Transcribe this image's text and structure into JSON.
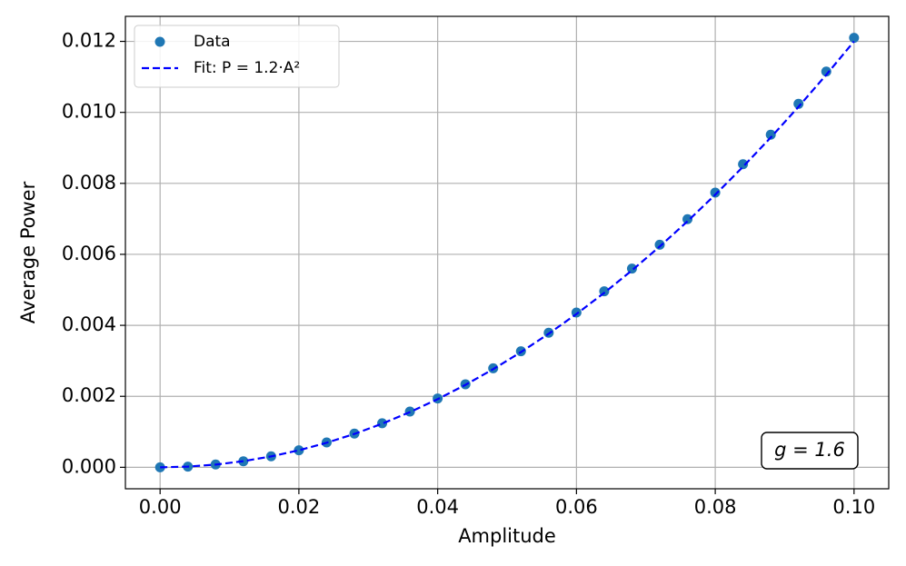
{
  "chart_data": {
    "type": "scatter",
    "x_label": "Amplitude",
    "y_label": "Average Power",
    "annotation": "g = 1.6",
    "x": [
      0,
      0.004,
      0.008,
      0.012,
      0.016,
      0.02,
      0.024,
      0.028,
      0.032,
      0.036,
      0.04,
      0.044,
      0.048,
      0.052,
      0.056,
      0.06,
      0.064,
      0.068,
      0.072,
      0.076,
      0.08,
      0.084,
      0.088,
      0.092,
      0.096,
      0.1
    ],
    "series": [
      {
        "name": "Data",
        "color": "#1f77b4",
        "style": "marker",
        "values": [
          0,
          2e-05,
          8e-05,
          0.00017,
          0.00031,
          0.00048,
          0.0007,
          0.00095,
          0.00124,
          0.00157,
          0.00194,
          0.00234,
          0.00279,
          0.00327,
          0.00379,
          0.00436,
          0.00496,
          0.0056,
          0.00627,
          0.00699,
          0.00774,
          0.00854,
          0.00937,
          0.01024,
          0.01115,
          0.0121
        ]
      },
      {
        "name": "Fit: P = 1.2·A²",
        "color": "#0000ff",
        "style": "dashed",
        "values": [
          0,
          1.92e-05,
          7.68e-05,
          0.0001728,
          0.0003072,
          0.00048,
          0.0006912,
          0.0009408,
          0.0012288,
          0.0015552,
          0.00192,
          0.0023232,
          0.0027648,
          0.0032448,
          0.0037632,
          0.00432,
          0.0049152,
          0.0055488,
          0.0062208,
          0.0069312,
          0.00768,
          0.0084672,
          0.0092928,
          0.0101568,
          0.0110592,
          0.012
        ]
      }
    ],
    "xlim": [
      -0.005,
      0.105
    ],
    "ylim": [
      -0.000605,
      0.012705
    ],
    "xticks": [
      {
        "value": 0,
        "label": "0.00"
      },
      {
        "value": 0.02,
        "label": "0.02"
      },
      {
        "value": 0.04,
        "label": "0.04"
      },
      {
        "value": 0.06,
        "label": "0.06"
      },
      {
        "value": 0.08,
        "label": "0.08"
      },
      {
        "value": 0.1,
        "label": "0.10"
      }
    ],
    "yticks": [
      {
        "value": 0,
        "label": "0.000"
      },
      {
        "value": 0.002,
        "label": "0.002"
      },
      {
        "value": 0.004,
        "label": "0.004"
      },
      {
        "value": 0.006,
        "label": "0.006"
      },
      {
        "value": 0.008,
        "label": "0.008"
      },
      {
        "value": 0.01,
        "label": "0.010"
      },
      {
        "value": 0.012,
        "label": "0.012"
      }
    ],
    "grid": true,
    "legend": "upper-left"
  }
}
